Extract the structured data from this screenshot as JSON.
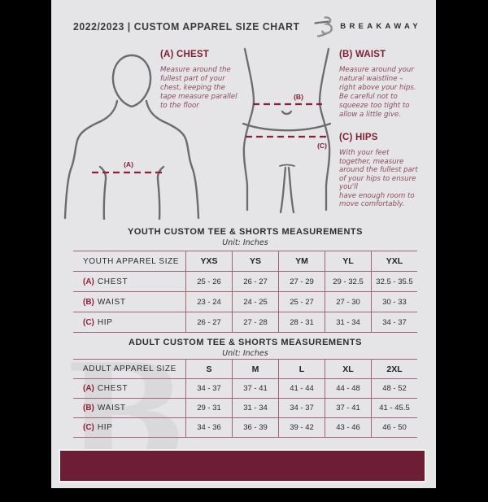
{
  "header": {
    "title": "2022/2023  |  CUSTOM APPAREL SIZE CHART",
    "brand": "BREAKAWAY"
  },
  "guide": {
    "chest": {
      "heading": "(A) CHEST",
      "marker": "(A)",
      "body": "Measure around the\nfullest part of your\nchest, keeping the\ntape measure parallel\nto the floor"
    },
    "waist": {
      "heading": "(B) WAIST",
      "marker": "(B)",
      "body": "Measure around your\nnatural waistline –\nright above your hips.\nBe careful not to\nsqueeze too tight to\nallow a little give."
    },
    "hips": {
      "heading": "(C) HIPS",
      "marker": "(C)",
      "body": "With your feet\ntogether, measure\naround the fullest part\nof your hips to ensure\nyou'll\nhave enough room to\nmove comfortably."
    }
  },
  "youth": {
    "title": "YOUTH CUSTOM TEE & SHORTS MEASUREMENTS",
    "unit": "Unit: Inches",
    "header": [
      "YOUTH APPAREL SIZE",
      "YXS",
      "YS",
      "YM",
      "YL",
      "YXL"
    ],
    "rows": [
      {
        "prefix": "(A)",
        "label": "CHEST",
        "values": [
          "25 - 26",
          "26 - 27",
          "27 - 29",
          "29 - 32.5",
          "32.5 - 35.5"
        ]
      },
      {
        "prefix": "(B)",
        "label": "WAIST",
        "values": [
          "23 - 24",
          "24 - 25",
          "25 - 27",
          "27 - 30",
          "30 - 33"
        ]
      },
      {
        "prefix": "(C)",
        "label": "HIP",
        "values": [
          "26 - 27",
          "27 - 28",
          "28 - 31",
          "31 - 34",
          "34 - 37"
        ]
      }
    ]
  },
  "adult": {
    "title": "ADULT CUSTOM TEE & SHORTS MEASUREMENTS",
    "unit": "Unit: Inches",
    "header": [
      "ADULT APPAREL SIZE",
      "S",
      "M",
      "L",
      "XL",
      "2XL"
    ],
    "rows": [
      {
        "prefix": "(A)",
        "label": "CHEST",
        "values": [
          "34 - 37",
          "37 - 41",
          "41 - 44",
          "44 - 48",
          "48 - 52"
        ]
      },
      {
        "prefix": "(B)",
        "label": "WAIST",
        "values": [
          "29 - 31",
          "31 - 34",
          "34 - 37",
          "37 - 41",
          "41 - 45.5"
        ]
      },
      {
        "prefix": "(C)",
        "label": "HIP",
        "values": [
          "34 - 36",
          "36 - 39",
          "39 - 42",
          "43 - 46",
          "46 - 50"
        ]
      }
    ]
  },
  "watermark": "B",
  "colors": {
    "maroon_heading": "#7d1f33",
    "maroon_dash": "#8e1f36",
    "footer_bar": "#6d1d35",
    "table_border": "#9c6771",
    "figure_stroke": "#6c6c6c",
    "page_bg": "#e5e4e6"
  }
}
